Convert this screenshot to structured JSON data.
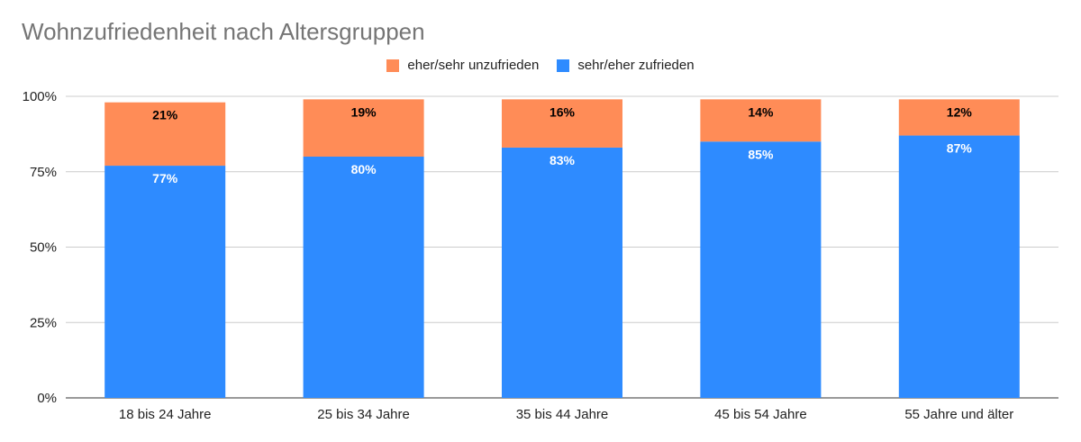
{
  "chart_data": {
    "type": "bar",
    "stacked": true,
    "title": "Wohnzufriedenheit nach Altersgruppen",
    "xlabel": "",
    "ylabel": "",
    "categories": [
      "18 bis 24 Jahre",
      "25 bis 34 Jahre",
      "35 bis 44 Jahre",
      "45 bis 54 Jahre",
      "55 Jahre und älter"
    ],
    "series": [
      {
        "name": "sehr/eher zufrieden",
        "color": "#2E8BFF",
        "label_color": "#ffffff",
        "values": [
          77,
          80,
          83,
          85,
          87
        ],
        "labels": [
          "77%",
          "80%",
          "83%",
          "85%",
          "87%"
        ]
      },
      {
        "name": "eher/sehr unzufrieden",
        "color": "#FF8C57",
        "label_color": "#000000",
        "values": [
          21,
          19,
          16,
          14,
          12
        ],
        "labels": [
          "21%",
          "19%",
          "16%",
          "14%",
          "12%"
        ]
      }
    ],
    "legend_order": [
      1,
      0
    ],
    "legend_position": "top",
    "ylim": [
      0,
      100
    ],
    "yticks": [
      0,
      25,
      50,
      75,
      100
    ],
    "ytick_labels": [
      "0%",
      "25%",
      "50%",
      "75%",
      "100%"
    ],
    "grid": true
  }
}
